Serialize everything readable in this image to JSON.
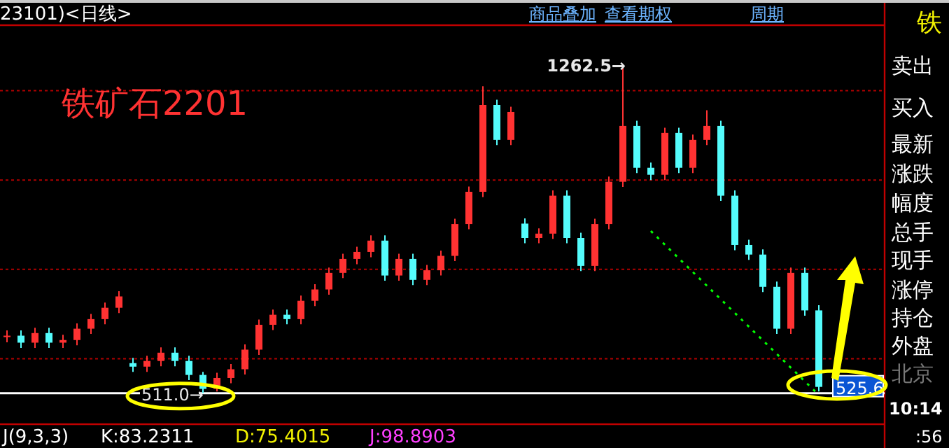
{
  "chart_data": {
    "type": "candlestick",
    "title": "铁矿石2201",
    "categories": [
      null,
      null,
      null,
      null,
      null,
      null,
      null,
      null,
      null,
      null,
      null,
      null,
      null,
      null,
      null,
      null,
      null,
      null,
      null,
      null,
      null,
      null,
      null,
      null,
      null,
      null,
      null,
      null,
      null,
      null,
      null,
      null,
      null,
      null,
      null,
      null,
      null,
      null,
      null,
      null,
      null,
      null,
      null,
      null,
      null,
      null,
      null,
      null,
      null,
      null,
      null,
      null,
      null,
      null,
      null,
      null,
      null,
      null,
      null
    ],
    "ohlc": [
      [
        640,
        655,
        628,
        643
      ],
      [
        643,
        655,
        615,
        627
      ],
      [
        627,
        661,
        615,
        649
      ],
      [
        649,
        661,
        615,
        627
      ],
      [
        627,
        645,
        615,
        633
      ],
      [
        633,
        671,
        621,
        659
      ],
      [
        659,
        693,
        647,
        681
      ],
      [
        681,
        719,
        669,
        707
      ],
      [
        707,
        745,
        695,
        733
      ],
      [
        580,
        592,
        560,
        572
      ],
      [
        572,
        597,
        560,
        585
      ],
      [
        585,
        616,
        573,
        604
      ],
      [
        604,
        616,
        573,
        585
      ],
      [
        585,
        597,
        541,
        553
      ],
      [
        553,
        560,
        511,
        521
      ],
      [
        521,
        558,
        515,
        546
      ],
      [
        546,
        578,
        534,
        566
      ],
      [
        566,
        623,
        554,
        611
      ],
      [
        611,
        680,
        599,
        668
      ],
      [
        668,
        703,
        656,
        691
      ],
      [
        691,
        703,
        669,
        681
      ],
      [
        681,
        735,
        669,
        723
      ],
      [
        723,
        761,
        711,
        749
      ],
      [
        749,
        799,
        737,
        787
      ],
      [
        787,
        831,
        775,
        819
      ],
      [
        819,
        847,
        807,
        835
      ],
      [
        835,
        873,
        823,
        861
      ],
      [
        861,
        873,
        769,
        781
      ],
      [
        781,
        831,
        769,
        819
      ],
      [
        819,
        831,
        759,
        771
      ],
      [
        771,
        805,
        759,
        793
      ],
      [
        793,
        838,
        781,
        826
      ],
      [
        826,
        911,
        814,
        899
      ],
      [
        899,
        985,
        887,
        973
      ],
      [
        973,
        1215,
        961,
        1172
      ],
      [
        1172,
        1184,
        1080,
        1092
      ],
      [
        1092,
        1168,
        1080,
        1156
      ],
      [
        900,
        912,
        855,
        867
      ],
      [
        867,
        889,
        855,
        877
      ],
      [
        877,
        976,
        865,
        964
      ],
      [
        964,
        976,
        855,
        867
      ],
      [
        867,
        879,
        791,
        803
      ],
      [
        803,
        911,
        791,
        899
      ],
      [
        899,
        1008,
        887,
        996
      ],
      [
        996,
        1262.5,
        984,
        1124
      ],
      [
        1124,
        1136,
        1016,
        1028
      ],
      [
        1028,
        1040,
        1000,
        1012
      ],
      [
        1012,
        1120,
        1000,
        1108
      ],
      [
        1108,
        1120,
        1016,
        1028
      ],
      [
        1028,
        1104,
        1016,
        1092
      ],
      [
        1092,
        1160,
        1080,
        1124
      ],
      [
        1124,
        1136,
        952,
        964
      ],
      [
        964,
        976,
        839,
        851
      ],
      [
        851,
        863,
        817,
        829
      ],
      [
        829,
        841,
        743,
        755
      ],
      [
        755,
        767,
        647,
        659
      ],
      [
        659,
        799,
        647,
        787
      ],
      [
        787,
        799,
        689,
        701
      ],
      [
        701,
        713,
        515,
        525.6
      ]
    ],
    "colors": [
      "#ff3232",
      "#54fcfc",
      "#ff3232",
      "#54fcfc",
      "#ff3232",
      "#ff3232",
      "#ff3232",
      "#ff3232",
      "#ff3232",
      "#54fcfc",
      "#ff3232",
      "#ff3232",
      "#54fcfc",
      "#54fcfc",
      "#54fcfc",
      "#ff3232",
      "#ff3232",
      "#ff3232",
      "#ff3232",
      "#ff3232",
      "#54fcfc",
      "#ff3232",
      "#ff3232",
      "#ff3232",
      "#ff3232",
      "#ff3232",
      "#ff3232",
      "#54fcfc",
      "#ff3232",
      "#54fcfc",
      "#ff3232",
      "#ff3232",
      "#ff3232",
      "#ff3232",
      "#ff3232",
      "#54fcfc",
      "#ff3232",
      "#54fcfc",
      "#ff3232",
      "#ff3232",
      "#54fcfc",
      "#54fcfc",
      "#ff3232",
      "#ff3232",
      "#ff3232",
      "#54fcfc",
      "#54fcfc",
      "#ff3232",
      "#54fcfc",
      "#ff3232",
      "#ff3232",
      "#54fcfc",
      "#54fcfc",
      "#54fcfc",
      "#54fcfc",
      "#54fcfc",
      "#ff3232",
      "#54fcfc",
      "#54fcfc"
    ],
    "series": [
      {
        "type": "line",
        "values": [
          null,
          null,
          null,
          null,
          null,
          null,
          null,
          null,
          null,
          null,
          null,
          null,
          null,
          null,
          null,
          null,
          null,
          null,
          null,
          null,
          null,
          null,
          null,
          null,
          null,
          null,
          null,
          null,
          null,
          null,
          null,
          null,
          null,
          null,
          null,
          null,
          null,
          null,
          null,
          null,
          null,
          null,
          null,
          null,
          null,
          null,
          883,
          null,
          null,
          null,
          null,
          null,
          null,
          null,
          null,
          null,
          null,
          null,
          507
        ],
        "color": "#00ff00",
        "line_style": "dotted"
      }
    ],
    "ylim": [
      440,
      1355
    ],
    "yticks": [
      {
        "value": 590,
        "label": null
      },
      {
        "value": 795,
        "label": null
      },
      {
        "value": 1000,
        "label": null
      },
      {
        "value": 1205,
        "label": null
      }
    ],
    "grid": "y",
    "ref_lines": [
      {
        "axis": "y",
        "value": 511,
        "color": "#ffffff"
      }
    ],
    "annotations": [
      "23101)<日线>",
      "商品叠加",
      "查看期权",
      "周期",
      "铁",
      "卖出",
      "买入",
      "最新",
      "涨跌",
      "幅度",
      "总手",
      "现手",
      "涨停",
      "持仓",
      "外盘",
      "北京",
      "10:14",
      ":56",
      "J(9,3,3)",
      "K:83.2311",
      "D:75.4015",
      "J:98.8903",
      "1262.5→",
      "511.0→",
      "525.6"
    ]
  }
}
